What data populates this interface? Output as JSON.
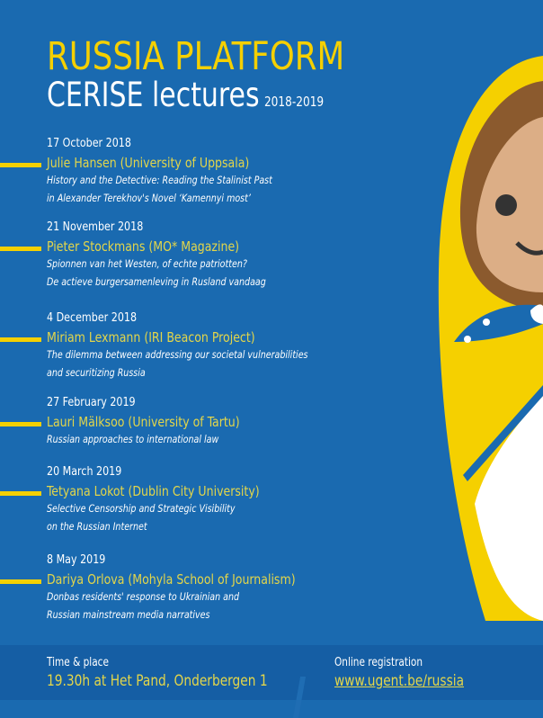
{
  "header": {
    "title": "RUSSIA PLATFORM",
    "subtitle": "CERISE lectures",
    "years": "2018-2019"
  },
  "events": [
    {
      "date": "17 October 2018",
      "speaker": "Julie Hansen (University of Uppsala)",
      "lines": [
        "History and the Detective: Reading the Stalinist Past",
        "in Alexander Terekhov's Novel ‘Kamennyi most’"
      ]
    },
    {
      "date": "21 November 2018",
      "speaker": "Pieter Stockmans (MO* Magazine)",
      "lines": [
        "Spionnen van het Westen, of echte patriotten?",
        "De actieve burgersamenleving in Rusland vandaag"
      ]
    },
    {
      "date": "4 December 2018",
      "speaker": "Miriam Lexmann (IRI Beacon Project)",
      "lines": [
        "The dilemma between addressing our societal vulnerabilities",
        "and securitizing Russia"
      ]
    },
    {
      "date": "27 February 2019",
      "speaker": "Lauri Mälksoo (University of Tartu)",
      "lines": [
        "Russian approaches to international law"
      ]
    },
    {
      "date": "20 March 2019",
      "speaker": "Tetyana Lokot (Dublin City University)",
      "lines": [
        "Selective Censorship and Strategic Visibility",
        "on the Russian Internet"
      ]
    },
    {
      "date": "8 May 2019",
      "speaker": "Dariya Orlova (Mohyla School of Journalism)",
      "lines": [
        "Donbas residents' response to Ukrainian and",
        "Russian mainstream media narratives"
      ]
    }
  ],
  "footer": {
    "time_label": "Time & place",
    "time_value": "19.30h at Het Pand, Onderbergen 1",
    "reg_label": "Online registration",
    "reg_link": "www.ugent.be/russia"
  },
  "colors": {
    "background": "#1a6ab0",
    "accent": "#f5d000",
    "footer": "#155ea4"
  }
}
